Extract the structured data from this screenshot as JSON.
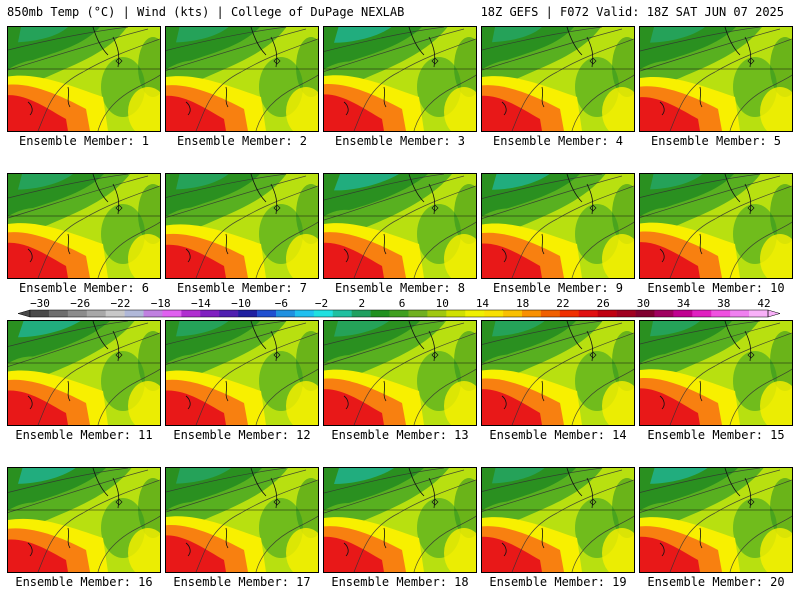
{
  "header": {
    "left": "850mb Temp (°C) | Wind (kts) | College of DuPage NEXLAB",
    "right": "18Z GEFS | F072 Valid: 18Z SAT JUN 07 2025"
  },
  "panels": [
    {
      "label": "Ensemble Member: 1",
      "warmth": 0.85,
      "cool": 0.3
    },
    {
      "label": "Ensemble Member: 2",
      "warmth": 0.8,
      "cool": 0.35
    },
    {
      "label": "Ensemble Member: 3",
      "warmth": 0.9,
      "cool": 0.45
    },
    {
      "label": "Ensemble Member: 4",
      "warmth": 0.8,
      "cool": 0.3
    },
    {
      "label": "Ensemble Member: 5",
      "warmth": 0.7,
      "cool": 0.4
    },
    {
      "label": "Ensemble Member: 6",
      "warmth": 0.8,
      "cool": 0.4
    },
    {
      "label": "Ensemble Member: 7",
      "warmth": 0.65,
      "cool": 0.35
    },
    {
      "label": "Ensemble Member: 8",
      "warmth": 0.8,
      "cool": 0.6
    },
    {
      "label": "Ensemble Member: 9",
      "warmth": 0.75,
      "cool": 0.45
    },
    {
      "label": "Ensemble Member: 10",
      "warmth": 0.85,
      "cool": 0.35
    },
    {
      "label": "Ensemble Member: 11",
      "warmth": 0.75,
      "cool": 0.55
    },
    {
      "label": "Ensemble Member: 12",
      "warmth": 0.75,
      "cool": 0.35
    },
    {
      "label": "Ensemble Member: 13",
      "warmth": 0.85,
      "cool": 0.4
    },
    {
      "label": "Ensemble Member: 14",
      "warmth": 0.85,
      "cool": 0.35
    },
    {
      "label": "Ensemble Member: 15",
      "warmth": 0.9,
      "cool": 0.3
    },
    {
      "label": "Ensemble Member: 16",
      "warmth": 0.6,
      "cool": 0.45
    },
    {
      "label": "Ensemble Member: 17",
      "warmth": 0.9,
      "cool": 0.4
    },
    {
      "label": "Ensemble Member: 18",
      "warmth": 0.8,
      "cool": 0.5
    },
    {
      "label": "Ensemble Member: 19",
      "warmth": 0.8,
      "cool": 0.35
    },
    {
      "label": "Ensemble Member: 20",
      "warmth": 0.8,
      "cool": 0.45
    }
  ],
  "colorbar": {
    "ticks": [
      "−30",
      "−26",
      "−22",
      "−18",
      "−14",
      "−10",
      "−6",
      "−2",
      "2",
      "6",
      "10",
      "14",
      "18",
      "22",
      "26",
      "30",
      "34",
      "38",
      "42"
    ],
    "colors": [
      "#4a4a4a",
      "#6e6e6e",
      "#8c8c8c",
      "#a8a8a8",
      "#c8c8c8",
      "#b0b8d8",
      "#c080e0",
      "#e060f0",
      "#b030d0",
      "#8020c0",
      "#5020b0",
      "#2020a0",
      "#2050d0",
      "#2090e0",
      "#20c0f0",
      "#20e0e0",
      "#20c0a0",
      "#20a060",
      "#209020",
      "#40a020",
      "#70b020",
      "#a0c810",
      "#d0e000",
      "#f0f000",
      "#f8e000",
      "#f8c000",
      "#f89000",
      "#f06000",
      "#f03000",
      "#e01010",
      "#c00010",
      "#a00020",
      "#800030",
      "#a00060",
      "#c00090",
      "#e020c0",
      "#f050e0",
      "#f080f0",
      "#f8b0f8"
    ]
  },
  "colors": {
    "warm_red": "#e81818",
    "orange": "#f88010",
    "yellow": "#f8f000",
    "yellowgreen": "#b8e010",
    "green": "#58b020",
    "darkgreen": "#2a9020",
    "teal": "#20b088"
  }
}
